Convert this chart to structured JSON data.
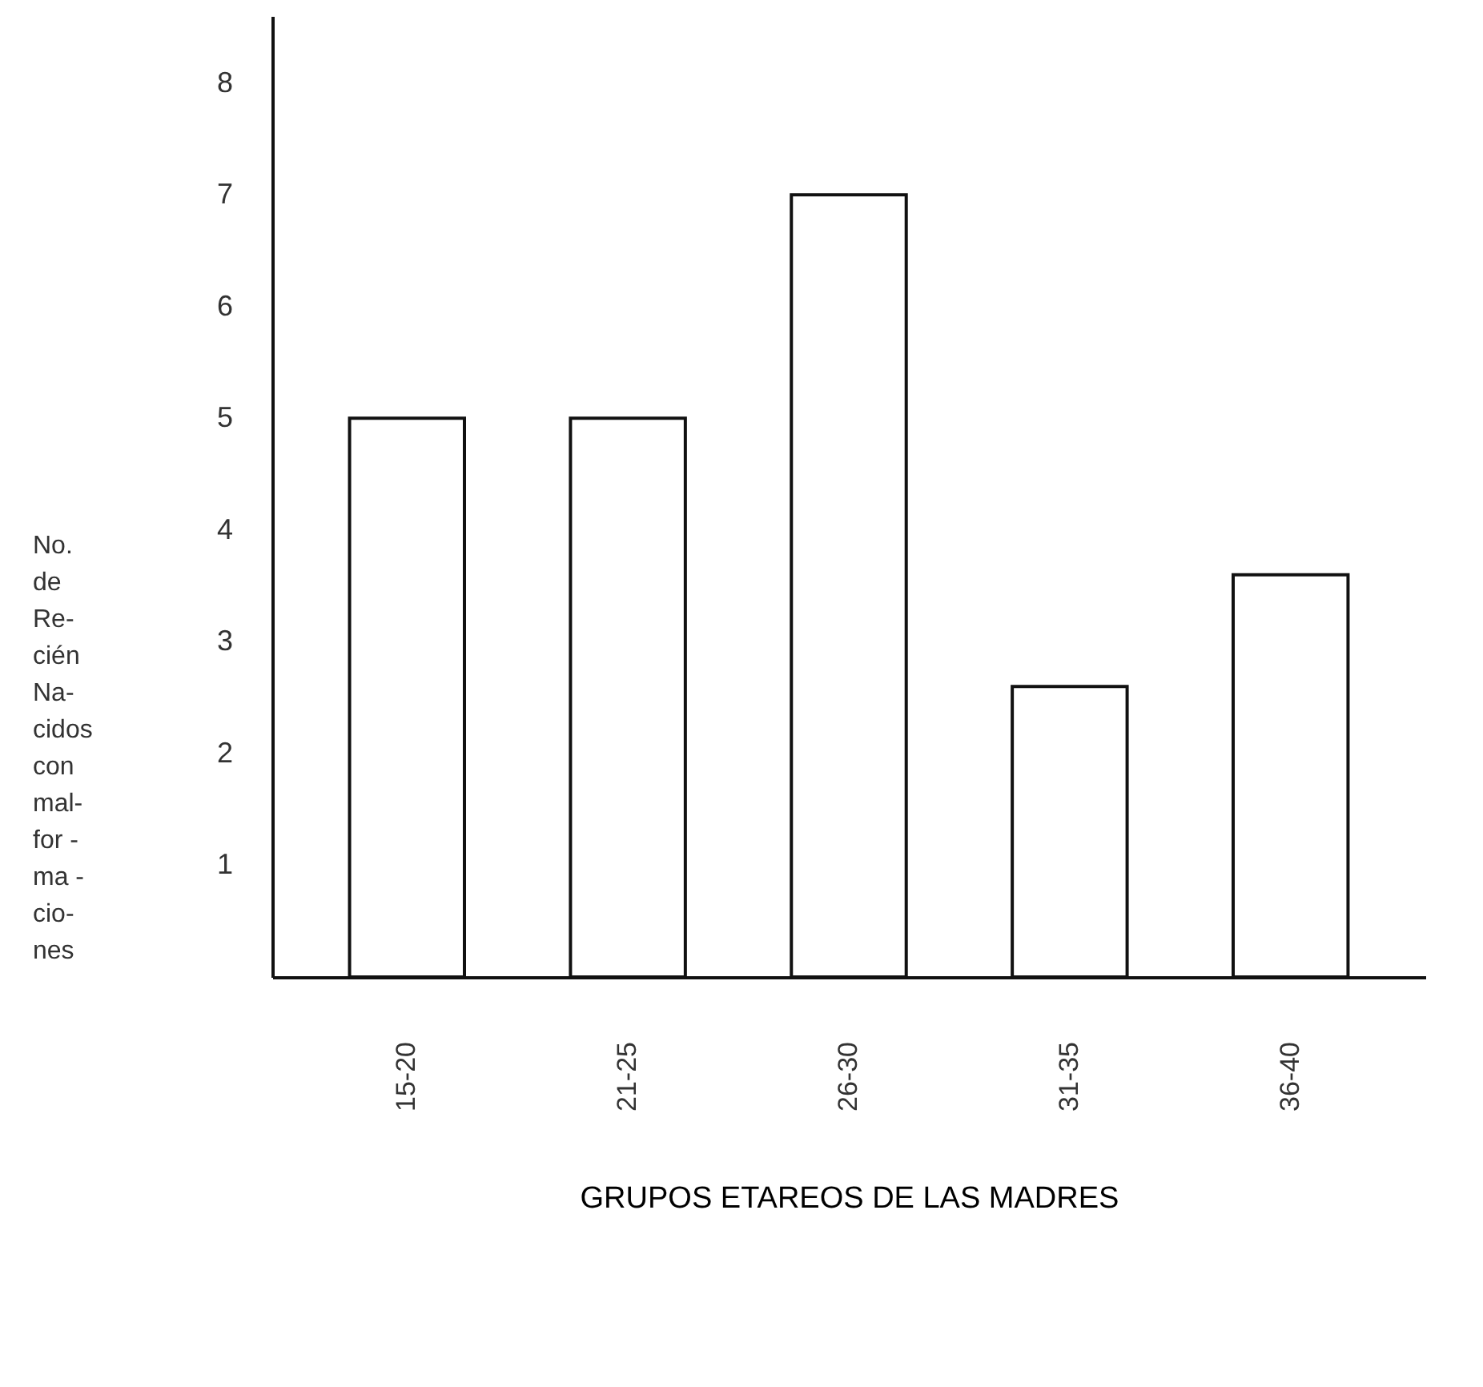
{
  "chart_data": {
    "type": "bar",
    "xlabel": "GRUPOS ETAREOS DE LAS MADRES",
    "ylabel": "No.\nde\nRe-\ncién\nNa-\ncidos\ncon\nmal-\nfor -\nma -\ncio-\nnes",
    "categories": [
      "15-20",
      "21-25",
      "26-30",
      "31-35",
      "36-40"
    ],
    "values": [
      5,
      5,
      7,
      2.6,
      3.6
    ],
    "color": "#ffffff",
    "ylim": [
      0,
      8.6
    ],
    "yticks": [
      1,
      2,
      3,
      4,
      5,
      6,
      7,
      8
    ],
    "grid": false
  }
}
